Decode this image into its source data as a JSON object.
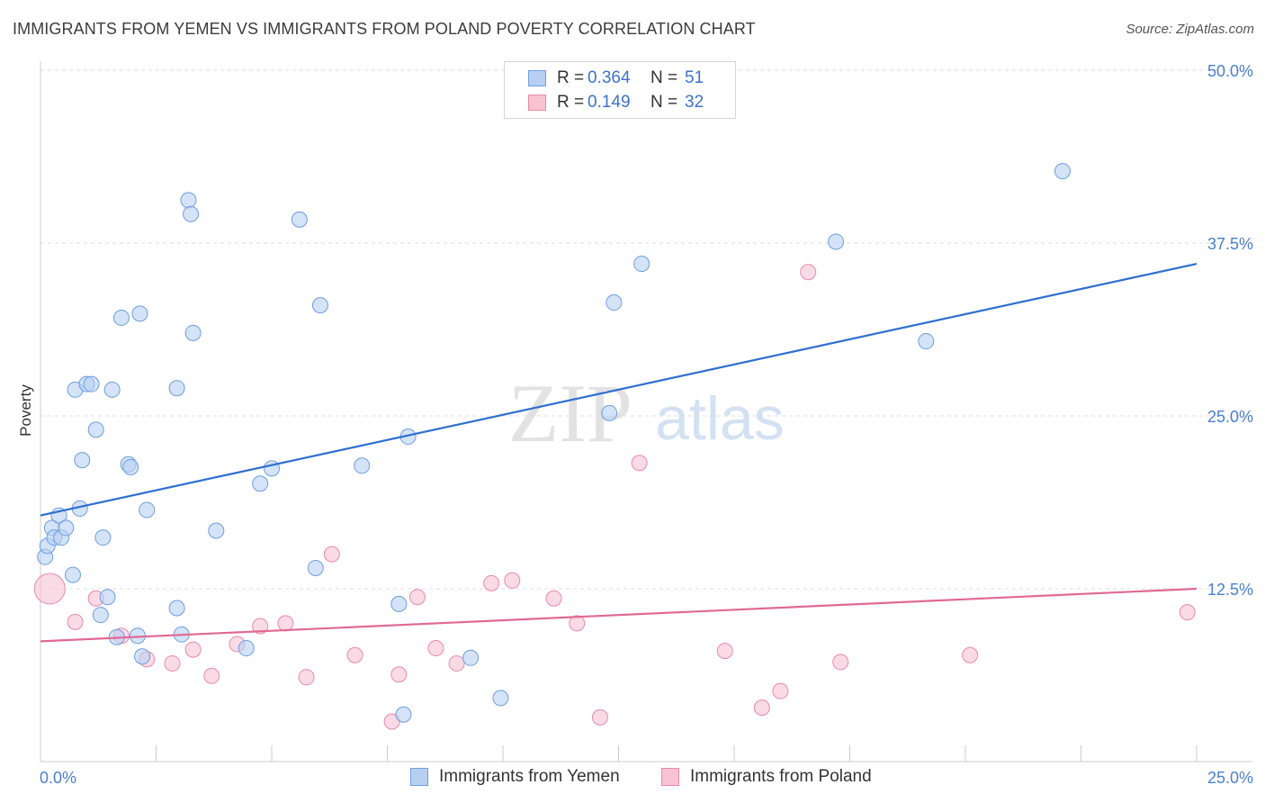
{
  "header": {
    "title": "IMMIGRANTS FROM YEMEN VS IMMIGRANTS FROM POLAND POVERTY CORRELATION CHART",
    "source": "Source: ZipAtlas.com"
  },
  "watermark": {
    "zip": "ZIP",
    "atlas": "atlas"
  },
  "colors": {
    "yemen_fill": "#b7d0f2",
    "yemen_stroke": "#6d9ee0",
    "yemen_line": "#2d6fd0",
    "poland_fill": "#f7c3d3",
    "poland_stroke": "#e98aa8",
    "poland_line": "#e06a94",
    "tick_text": "#4a7fd0",
    "grid": "#dedede"
  },
  "legend": {
    "rows": [
      {
        "r_label": "R =",
        "r_value": "0.364",
        "n_label": "N =",
        "n_value": "51"
      },
      {
        "r_label": "R =",
        "r_value": "0.149",
        "n_label": "N =",
        "n_value": "32"
      }
    ]
  },
  "bottom_legend": {
    "yemen": "Immigrants from Yemen",
    "poland": "Immigrants from Poland"
  },
  "chart_data": {
    "type": "scatter",
    "title": "IMMIGRANTS FROM YEMEN VS IMMIGRANTS FROM POLAND POVERTY CORRELATION CHART",
    "xlabel": "",
    "ylabel": "Poverty",
    "xlim": [
      0,
      25
    ],
    "ylim": [
      0,
      50
    ],
    "x_tick_labels": [
      {
        "value": 0,
        "label": "0.0%"
      },
      {
        "value": 25,
        "label": "25.0%"
      }
    ],
    "y_tick_labels": [
      {
        "value": 12.5,
        "label": "12.5%"
      },
      {
        "value": 25,
        "label": "25.0%"
      },
      {
        "value": 37.5,
        "label": "37.5%"
      },
      {
        "value": 50,
        "label": "50.0%"
      }
    ],
    "x_minor_ticks": [
      2.5,
      5,
      7.5,
      10,
      12.5,
      15,
      17.5,
      20,
      22.5,
      25
    ],
    "series": [
      {
        "name": "Immigrants from Yemen",
        "r": 0.364,
        "n": 51,
        "trend": {
          "x": [
            0,
            25
          ],
          "y": [
            17.8,
            36.0
          ]
        },
        "points": [
          [
            0.1,
            14.8
          ],
          [
            0.15,
            15.6
          ],
          [
            0.25,
            16.9
          ],
          [
            0.3,
            16.2
          ],
          [
            0.4,
            17.8
          ],
          [
            0.45,
            16.2
          ],
          [
            0.55,
            16.9
          ],
          [
            0.7,
            13.5
          ],
          [
            0.75,
            26.9
          ],
          [
            0.85,
            18.3
          ],
          [
            0.9,
            21.8
          ],
          [
            1.0,
            27.3
          ],
          [
            1.1,
            27.3
          ],
          [
            1.2,
            24.0
          ],
          [
            1.3,
            10.6
          ],
          [
            1.35,
            16.2
          ],
          [
            1.45,
            11.9
          ],
          [
            1.55,
            26.9
          ],
          [
            1.65,
            9.0
          ],
          [
            1.75,
            32.1
          ],
          [
            1.9,
            21.5
          ],
          [
            1.95,
            21.3
          ],
          [
            2.1,
            9.1
          ],
          [
            2.15,
            32.4
          ],
          [
            2.2,
            7.6
          ],
          [
            2.3,
            18.2
          ],
          [
            2.95,
            27.0
          ],
          [
            2.95,
            11.1
          ],
          [
            3.05,
            9.2
          ],
          [
            3.2,
            40.6
          ],
          [
            3.25,
            39.6
          ],
          [
            3.3,
            31.0
          ],
          [
            3.8,
            16.7
          ],
          [
            4.45,
            8.2
          ],
          [
            4.75,
            20.1
          ],
          [
            5.0,
            21.2
          ],
          [
            5.6,
            39.2
          ],
          [
            5.95,
            14.0
          ],
          [
            6.05,
            33.0
          ],
          [
            6.95,
            21.4
          ],
          [
            7.75,
            11.4
          ],
          [
            7.85,
            3.4
          ],
          [
            7.95,
            23.5
          ],
          [
            9.3,
            7.5
          ],
          [
            9.95,
            4.6
          ],
          [
            12.3,
            25.2
          ],
          [
            12.4,
            33.2
          ],
          [
            13.0,
            36.0
          ],
          [
            17.2,
            37.6
          ],
          [
            19.15,
            30.4
          ],
          [
            22.1,
            42.7
          ]
        ]
      },
      {
        "name": "Immigrants from Poland",
        "r": 0.149,
        "n": 32,
        "trend": {
          "x": [
            0,
            25
          ],
          "y": [
            8.7,
            12.5
          ]
        },
        "points": [
          [
            0.2,
            12.5
          ],
          [
            0.75,
            10.1
          ],
          [
            1.2,
            11.8
          ],
          [
            1.75,
            9.1
          ],
          [
            2.3,
            7.4
          ],
          [
            2.85,
            7.1
          ],
          [
            3.3,
            8.1
          ],
          [
            3.7,
            6.2
          ],
          [
            4.25,
            8.5
          ],
          [
            4.75,
            9.8
          ],
          [
            5.3,
            10.0
          ],
          [
            5.75,
            6.1
          ],
          [
            6.3,
            15.0
          ],
          [
            6.8,
            7.7
          ],
          [
            7.6,
            2.9
          ],
          [
            7.75,
            6.3
          ],
          [
            8.15,
            11.9
          ],
          [
            8.55,
            8.2
          ],
          [
            9.0,
            7.1
          ],
          [
            9.75,
            12.9
          ],
          [
            10.2,
            13.1
          ],
          [
            11.1,
            11.8
          ],
          [
            11.6,
            10.0
          ],
          [
            12.1,
            3.2
          ],
          [
            12.95,
            21.6
          ],
          [
            14.8,
            8.0
          ],
          [
            15.6,
            3.9
          ],
          [
            16.0,
            5.1
          ],
          [
            16.6,
            35.4
          ],
          [
            17.3,
            7.2
          ],
          [
            20.1,
            7.7
          ],
          [
            24.8,
            10.8
          ]
        ]
      }
    ]
  }
}
